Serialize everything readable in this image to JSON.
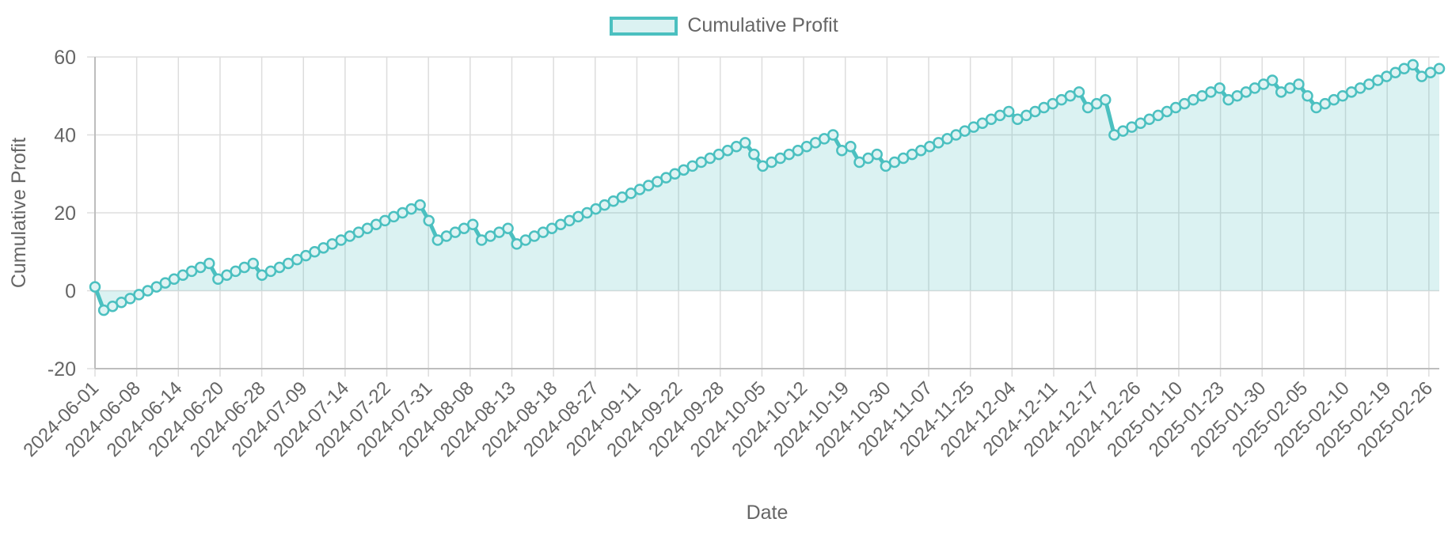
{
  "chart_data": {
    "type": "area",
    "legend": {
      "position": "top-center",
      "entries": [
        "Cumulative Profit"
      ]
    },
    "xlabel": "Date",
    "ylabel": "Cumulative Profit",
    "ylim": [
      -20,
      60
    ],
    "yticks": [
      -20,
      0,
      20,
      40,
      60
    ],
    "grid": true,
    "x_tick_labels": [
      "2024-06-01",
      "2024-06-08",
      "2024-06-14",
      "2024-06-20",
      "2024-06-28",
      "2024-07-09",
      "2024-07-14",
      "2024-07-22",
      "2024-07-31",
      "2024-08-08",
      "2024-08-13",
      "2024-08-18",
      "2024-08-27",
      "2024-09-11",
      "2024-09-22",
      "2024-09-28",
      "2024-10-05",
      "2024-10-12",
      "2024-10-19",
      "2024-10-30",
      "2024-11-07",
      "2024-11-25",
      "2024-12-04",
      "2024-12-11",
      "2024-12-17",
      "2024-12-26",
      "2025-01-10",
      "2025-01-23",
      "2025-01-30",
      "2025-02-05",
      "2025-02-10",
      "2025-02-19",
      "2025-02-26"
    ],
    "series": [
      {
        "name": "Cumulative Profit",
        "color": "#4bc0c0",
        "fill": "rgba(75,192,192,0.2)",
        "values": [
          1,
          -5,
          -4,
          -3,
          -2,
          -1,
          0,
          1,
          2,
          3,
          4,
          5,
          6,
          7,
          3,
          4,
          5,
          6,
          7,
          4,
          5,
          6,
          7,
          8,
          9,
          10,
          11,
          12,
          13,
          14,
          15,
          16,
          17,
          18,
          19,
          20,
          21,
          22,
          18,
          13,
          14,
          15,
          16,
          17,
          13,
          14,
          15,
          16,
          12,
          13,
          14,
          15,
          16,
          17,
          18,
          19,
          20,
          21,
          22,
          23,
          24,
          25,
          26,
          27,
          28,
          29,
          30,
          31,
          32,
          33,
          34,
          35,
          36,
          37,
          38,
          35,
          32,
          33,
          34,
          35,
          36,
          37,
          38,
          39,
          40,
          36,
          37,
          33,
          34,
          35,
          32,
          33,
          34,
          35,
          36,
          37,
          38,
          39,
          40,
          41,
          42,
          43,
          44,
          45,
          46,
          44,
          45,
          46,
          47,
          48,
          49,
          50,
          51,
          47,
          48,
          49,
          40,
          41,
          42,
          43,
          44,
          45,
          46,
          47,
          48,
          49,
          50,
          51,
          52,
          49,
          50,
          51,
          52,
          53,
          54,
          51,
          52,
          53,
          50,
          47,
          48,
          49,
          50,
          51,
          52,
          53,
          54,
          55,
          56,
          57,
          58,
          55,
          56,
          57
        ]
      }
    ]
  }
}
